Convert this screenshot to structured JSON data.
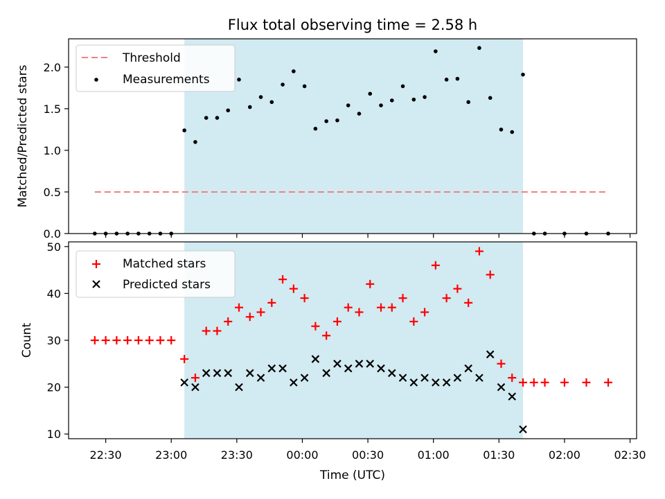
{
  "title": "Flux total observing time = 2.58 h",
  "colors": {
    "shade": "#add8e6",
    "threshold": "#f08080",
    "measurement": "#000000",
    "matched": "#ff0000",
    "predicted": "#000000"
  },
  "chart_data": [
    {
      "type": "scatter",
      "ylabel": "Matched/Predicted stars",
      "ylim": [
        0,
        2.34
      ],
      "yticks": [
        0.0,
        0.5,
        1.0,
        1.5,
        2.0
      ],
      "ytick_labels": [
        "0.0",
        "0.5",
        "1.0",
        "1.5",
        "2.0"
      ],
      "xlim": [
        "22:13",
        "02:33"
      ],
      "shaded_region": [
        "23:06",
        "01:41"
      ],
      "threshold": {
        "name": "Threshold",
        "y": 0.5,
        "x": [
          "22:25",
          "02:20"
        ]
      },
      "legend": {
        "placement": "top-left",
        "entries": [
          "Threshold",
          "Measurements"
        ]
      },
      "series": [
        {
          "name": "Measurements",
          "points": [
            [
              "22:25",
              0
            ],
            [
              "22:30",
              0
            ],
            [
              "22:35",
              0
            ],
            [
              "22:40",
              0
            ],
            [
              "22:45",
              0
            ],
            [
              "22:50",
              0
            ],
            [
              "22:55",
              0
            ],
            [
              "23:00",
              0
            ],
            [
              "23:06",
              1.24
            ],
            [
              "23:11",
              1.1
            ],
            [
              "23:16",
              1.39
            ],
            [
              "23:21",
              1.39
            ],
            [
              "23:26",
              1.48
            ],
            [
              "23:31",
              1.85
            ],
            [
              "23:36",
              1.52
            ],
            [
              "23:41",
              1.64
            ],
            [
              "23:46",
              1.58
            ],
            [
              "23:51",
              1.79
            ],
            [
              "23:56",
              1.95
            ],
            [
              "00:01",
              1.77
            ],
            [
              "00:06",
              1.26
            ],
            [
              "00:11",
              1.35
            ],
            [
              "00:16",
              1.36
            ],
            [
              "00:21",
              1.54
            ],
            [
              "00:26",
              1.44
            ],
            [
              "00:31",
              1.68
            ],
            [
              "00:36",
              1.54
            ],
            [
              "00:41",
              1.6
            ],
            [
              "00:46",
              1.77
            ],
            [
              "00:51",
              1.61
            ],
            [
              "00:56",
              1.64
            ],
            [
              "01:01",
              2.19
            ],
            [
              "01:06",
              1.85
            ],
            [
              "01:11",
              1.86
            ],
            [
              "01:16",
              1.58
            ],
            [
              "01:21",
              2.23
            ],
            [
              "01:26",
              1.63
            ],
            [
              "01:31",
              1.25
            ],
            [
              "01:36",
              1.22
            ],
            [
              "01:41",
              1.91
            ],
            [
              "01:46",
              0
            ],
            [
              "01:51",
              0
            ],
            [
              "02:00",
              0
            ],
            [
              "02:10",
              0
            ],
            [
              "02:20",
              0
            ]
          ]
        }
      ]
    },
    {
      "type": "scatter",
      "xlabel": "Time (UTC)",
      "ylabel": "Count",
      "ylim": [
        9,
        51
      ],
      "yticks": [
        10,
        20,
        30,
        40,
        50
      ],
      "ytick_labels": [
        "10",
        "20",
        "30",
        "40",
        "50"
      ],
      "xlim": [
        "22:13",
        "02:33"
      ],
      "xticks": [
        "22:30",
        "23:00",
        "23:30",
        "00:00",
        "00:30",
        "01:00",
        "01:30",
        "02:00",
        "02:30"
      ],
      "xtick_labels": [
        "22:30",
        "23:00",
        "23:30",
        "00:00",
        "00:30",
        "01:00",
        "01:30",
        "02:00",
        "02:30"
      ],
      "shaded_region": [
        "23:06",
        "01:41"
      ],
      "legend": {
        "placement": "top-left",
        "entries": [
          "Matched stars",
          "Predicted stars"
        ]
      },
      "series": [
        {
          "name": "Matched stars",
          "marker": "+",
          "points": [
            [
              "22:25",
              30
            ],
            [
              "22:30",
              30
            ],
            [
              "22:35",
              30
            ],
            [
              "22:40",
              30
            ],
            [
              "22:45",
              30
            ],
            [
              "22:50",
              30
            ],
            [
              "22:55",
              30
            ],
            [
              "23:00",
              30
            ],
            [
              "23:06",
              26
            ],
            [
              "23:11",
              22
            ],
            [
              "23:16",
              32
            ],
            [
              "23:21",
              32
            ],
            [
              "23:26",
              34
            ],
            [
              "23:31",
              37
            ],
            [
              "23:36",
              35
            ],
            [
              "23:41",
              36
            ],
            [
              "23:46",
              38
            ],
            [
              "23:51",
              43
            ],
            [
              "23:56",
              41
            ],
            [
              "00:01",
              39
            ],
            [
              "00:06",
              33
            ],
            [
              "00:11",
              31
            ],
            [
              "00:16",
              34
            ],
            [
              "00:21",
              37
            ],
            [
              "00:26",
              36
            ],
            [
              "00:31",
              42
            ],
            [
              "00:36",
              37
            ],
            [
              "00:41",
              37
            ],
            [
              "00:46",
              39
            ],
            [
              "00:51",
              34
            ],
            [
              "00:56",
              36
            ],
            [
              "01:01",
              46
            ],
            [
              "01:06",
              39
            ],
            [
              "01:11",
              41
            ],
            [
              "01:16",
              38
            ],
            [
              "01:21",
              49
            ],
            [
              "01:26",
              44
            ],
            [
              "01:31",
              25
            ],
            [
              "01:36",
              22
            ],
            [
              "01:41",
              21
            ],
            [
              "01:46",
              21
            ],
            [
              "01:51",
              21
            ],
            [
              "02:00",
              21
            ],
            [
              "02:10",
              21
            ],
            [
              "02:20",
              21
            ]
          ]
        },
        {
          "name": "Predicted stars",
          "marker": "x",
          "points": [
            [
              "23:06",
              21
            ],
            [
              "23:11",
              20
            ],
            [
              "23:16",
              23
            ],
            [
              "23:21",
              23
            ],
            [
              "23:26",
              23
            ],
            [
              "23:31",
              20
            ],
            [
              "23:36",
              23
            ],
            [
              "23:41",
              22
            ],
            [
              "23:46",
              24
            ],
            [
              "23:51",
              24
            ],
            [
              "23:56",
              21
            ],
            [
              "00:01",
              22
            ],
            [
              "00:06",
              26
            ],
            [
              "00:11",
              23
            ],
            [
              "00:16",
              25
            ],
            [
              "00:21",
              24
            ],
            [
              "00:26",
              25
            ],
            [
              "00:31",
              25
            ],
            [
              "00:36",
              24
            ],
            [
              "00:41",
              23
            ],
            [
              "00:46",
              22
            ],
            [
              "00:51",
              21
            ],
            [
              "00:56",
              22
            ],
            [
              "01:01",
              21
            ],
            [
              "01:06",
              21
            ],
            [
              "01:11",
              22
            ],
            [
              "01:16",
              24
            ],
            [
              "01:21",
              22
            ],
            [
              "01:26",
              27
            ],
            [
              "01:31",
              20
            ],
            [
              "01:36",
              18
            ],
            [
              "01:41",
              11
            ]
          ]
        }
      ]
    }
  ]
}
